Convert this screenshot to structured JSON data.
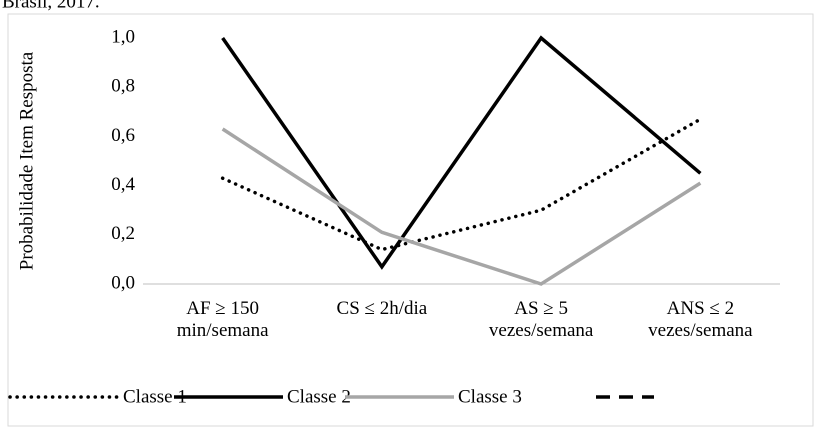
{
  "caption": "Brasil, 2017.",
  "chart_data": {
    "type": "line",
    "ylabel": "Probabilidade Item Resposta",
    "categories": [
      "AF ≥ 150\nmin/semana",
      "CS ≤ 2h/dia",
      "AS ≥ 5\nvezes/semana",
      "ANS ≤ 2\nvezes/semana"
    ],
    "series": [
      {
        "name": "Classe 1",
        "color": "#000000",
        "style": "dotted",
        "values": [
          0.43,
          0.14,
          0.3,
          0.67
        ]
      },
      {
        "name": "Classe 2",
        "color": "#000000",
        "style": "solid",
        "values": [
          1.0,
          0.07,
          1.0,
          0.45
        ]
      },
      {
        "name": "Classe 3",
        "color": "#a6a6a6",
        "style": "solid",
        "values": [
          0.63,
          0.21,
          0.0,
          0.41
        ]
      }
    ],
    "ylim": [
      0,
      1
    ],
    "yticks": [
      {
        "value": 0,
        "label": "0,0"
      },
      {
        "value": 0.2,
        "label": "0,2"
      },
      {
        "value": 0.4,
        "label": "0,4"
      },
      {
        "value": 0.6,
        "label": "0,6"
      },
      {
        "value": 0.8,
        "label": "0,8"
      },
      {
        "value": 1,
        "label": "1,0"
      }
    ],
    "grid": false,
    "legend": "bottom"
  }
}
